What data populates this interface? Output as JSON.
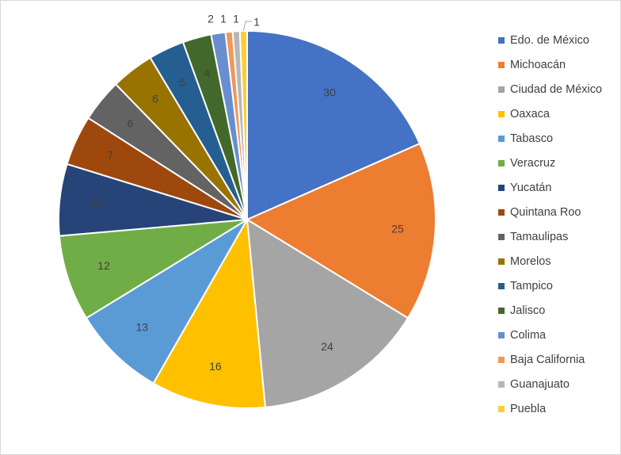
{
  "chart_data": {
    "type": "pie",
    "title": "",
    "categories": [
      "Edo. de México",
      "Michoacán",
      "Ciudad de México",
      "Oaxaca",
      "Tabasco",
      "Veracruz",
      "Yucatán",
      "Quintana Roo",
      "Tamaulipas",
      "Morelos",
      "Tampico",
      "Jalisco",
      "Colima",
      "Baja California",
      "Guanajuato",
      "Puebla"
    ],
    "values": [
      30,
      25,
      24,
      16,
      13,
      12,
      10,
      7,
      6,
      6,
      5,
      4,
      2,
      1,
      1,
      1
    ],
    "colors": [
      "#4472C4",
      "#ED7D31",
      "#A5A5A5",
      "#FFC000",
      "#5B9BD5",
      "#70AD47",
      "#264478",
      "#9E480E",
      "#636363",
      "#997300",
      "#255E91",
      "#43682B",
      "#698ED0",
      "#F1975A",
      "#B7B7B7",
      "#FFCD33"
    ],
    "legend": "right",
    "data_labels": true
  }
}
